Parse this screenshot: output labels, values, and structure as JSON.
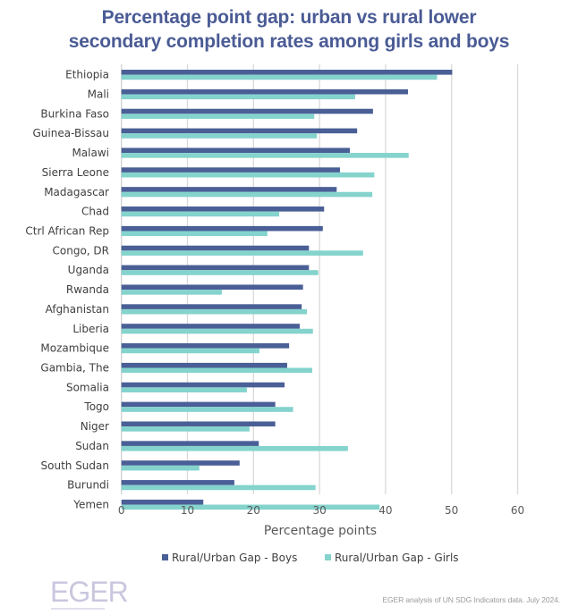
{
  "chart_data": {
    "type": "bar",
    "orientation": "horizontal",
    "title": "Percentage point gap: urban vs rural lower secondary completion rates among girls and boys",
    "title_lines": [
      "Percentage point gap: urban vs rural lower",
      "secondary completion rates among girls and boys"
    ],
    "xlabel": "Percentage points",
    "ylabel": "",
    "xlim": [
      0,
      60
    ],
    "xticks": [
      0,
      10,
      20,
      30,
      40,
      50,
      60
    ],
    "grid": true,
    "legend_position": "bottom",
    "categories": [
      "Ethiopia",
      "Mali",
      "Burkina Faso",
      "Guinea-Bissau",
      "Malawi",
      "Sierra Leone",
      "Madagascar",
      "Chad",
      "Ctrl African Rep",
      "Congo, DR",
      "Uganda",
      "Rwanda",
      "Afghanistan",
      "Liberia",
      "Mozambique",
      "Gambia, The",
      "Somalia",
      "Togo",
      "Niger",
      "Sudan",
      "South Sudan",
      "Burundi",
      "Yemen"
    ],
    "series": [
      {
        "name": "Rural/Urban Gap - Boys",
        "color": "#4a5f96",
        "values": [
          50.1,
          43.4,
          38.1,
          35.7,
          34.6,
          33.1,
          32.6,
          30.7,
          30.5,
          28.4,
          28.4,
          27.5,
          27.3,
          27.0,
          25.4,
          25.1,
          24.7,
          23.3,
          23.3,
          20.8,
          17.9,
          17.1,
          12.4
        ]
      },
      {
        "name": "Rural/Urban Gap - Girls",
        "color": "#84d3cd",
        "values": [
          47.8,
          35.4,
          29.2,
          29.6,
          43.5,
          38.3,
          38.0,
          23.9,
          22.1,
          36.6,
          29.8,
          15.2,
          28.1,
          29.0,
          20.9,
          28.9,
          19.0,
          26.0,
          19.4,
          34.3,
          11.8,
          29.4,
          39.1
        ]
      }
    ]
  },
  "footer": {
    "logo_text": "EGER",
    "source": "EGER analysis of UN SDG Indicators data. July 2024."
  },
  "colors": {
    "title": "#4a5b95",
    "gridline": "#d9d9d9"
  }
}
